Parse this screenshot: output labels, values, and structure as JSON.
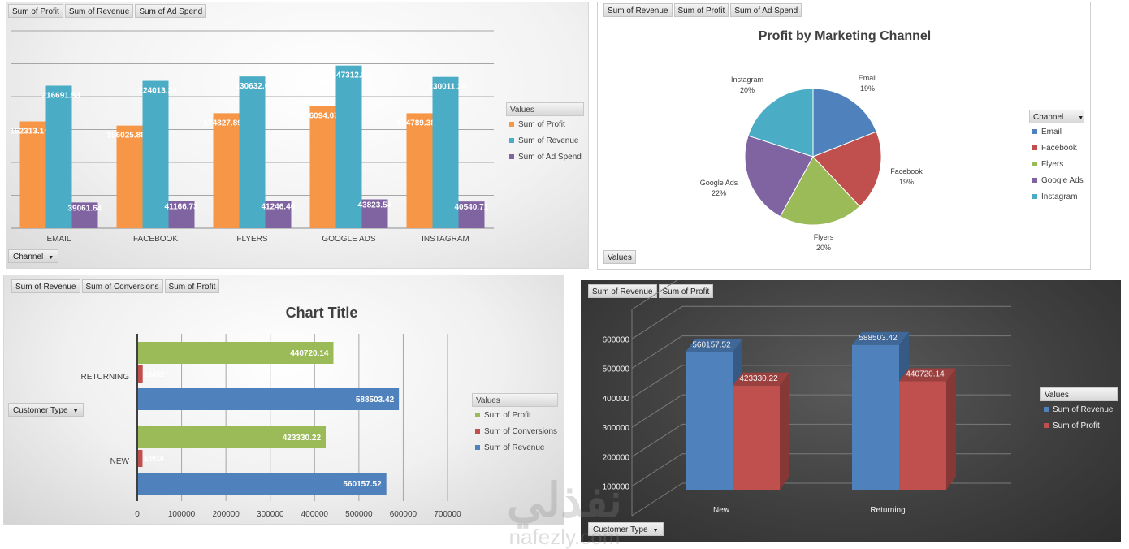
{
  "panel1": {
    "buttons": [
      "Sum of Profit",
      "Sum of Revenue",
      "Sum of Ad Spend"
    ],
    "axis_button": "Channel",
    "legend_title": "Values"
  },
  "panel2": {
    "buttons": [
      "Sum of Revenue",
      "Sum of Profit",
      "Sum of Ad Spend"
    ],
    "filter_button": "Values",
    "legend_title": "Channel"
  },
  "panel3": {
    "buttons": [
      "Sum of Revenue",
      "Sum of Conversions",
      "Sum of Profit"
    ],
    "axis_button": "Customer Type",
    "legend_title": "Values"
  },
  "panel4": {
    "buttons": [
      "Sum of Revenue",
      "Sum of Profit"
    ],
    "axis_button": "Customer Type",
    "legend_title": "Values"
  },
  "watermark": {
    "arabic": "نفذلي",
    "latin": "nafezly.com"
  },
  "chart_data": [
    {
      "type": "bar",
      "title": "",
      "categories": [
        "EMAIL",
        "FACEBOOK",
        "FLYERS",
        "GOOGLE ADS",
        "INSTAGRAM"
      ],
      "ylim": [
        0,
        300000
      ],
      "grid": true,
      "legend": "right",
      "series": [
        {
          "name": "Sum of Profit",
          "color": "#f79646",
          "values": [
            162313.14,
            156025.88,
            174827.89,
            186094.07,
            174789.38
          ],
          "labels": [
            "162313.14",
            "156025.88",
            "174827.89",
            "186094.07",
            "174789.38"
          ]
        },
        {
          "name": "Sum of Revenue",
          "color": "#4bacc6",
          "values": [
            216691.53,
            224013.24,
            230632.0,
            247312.8,
            230011.24
          ],
          "labels": [
            "216691.53",
            "224013.24",
            "230632.0",
            "247312.8",
            "230011.24"
          ]
        },
        {
          "name": "Sum of Ad Spend",
          "color": "#8064a2",
          "values": [
            39061.64,
            41166.73,
            41246.46,
            43823.54,
            40540.71
          ],
          "labels": [
            "39061.64",
            "41166.73",
            "41246.46",
            "43823.54",
            "40540.71"
          ]
        }
      ]
    },
    {
      "type": "pie",
      "title": "Profit by Marketing Channel",
      "legend": "right",
      "categories": [
        "Email",
        "Facebook",
        "Flyers",
        "Google Ads",
        "Instagram"
      ],
      "values": [
        19,
        19,
        20,
        22,
        20
      ],
      "labels": [
        "19%",
        "19%",
        "20%",
        "22%",
        "20%"
      ],
      "colors": [
        "#4f81bd",
        "#c0504d",
        "#9bbb59",
        "#8064a2",
        "#4bacc6"
      ]
    },
    {
      "type": "bar",
      "orientation": "horizontal",
      "title": "Chart Title",
      "categories": [
        "NEW",
        "RETURNING"
      ],
      "xlim": [
        0,
        700000
      ],
      "xticks": [
        "0",
        "100000",
        "200000",
        "300000",
        "400000",
        "500000",
        "600000",
        "700000"
      ],
      "grid": true,
      "legend": "right",
      "series": [
        {
          "name": "Sum of Profit",
          "color": "#9bbb59",
          "values": [
            423330.22,
            440720.14
          ],
          "labels": [
            "423330.22",
            "440720.14"
          ]
        },
        {
          "name": "Sum of Conversions",
          "color": "#c0504d",
          "values": [
            10016,
            10452
          ],
          "labels": [
            "10016",
            "10452"
          ]
        },
        {
          "name": "Sum of Revenue",
          "color": "#4f81bd",
          "values": [
            560157.52,
            588503.42
          ],
          "labels": [
            "560157.52",
            "588503.42"
          ]
        }
      ]
    },
    {
      "type": "bar",
      "style": "3d",
      "title": "",
      "categories": [
        "New",
        "Returning"
      ],
      "ylim": [
        0,
        700000
      ],
      "yticks": [
        "100000",
        "200000",
        "300000",
        "400000",
        "500000",
        "600000"
      ],
      "grid": true,
      "legend": "right",
      "series": [
        {
          "name": "Sum of Revenue",
          "color": "#4f81bd",
          "values": [
            560157.52,
            588503.42
          ],
          "labels": [
            "560157.52",
            "588503.42"
          ]
        },
        {
          "name": "Sum of Profit",
          "color": "#c0504d",
          "values": [
            423330.22,
            440720.14
          ],
          "labels": [
            "423330.22",
            "440720.14"
          ]
        }
      ]
    }
  ]
}
